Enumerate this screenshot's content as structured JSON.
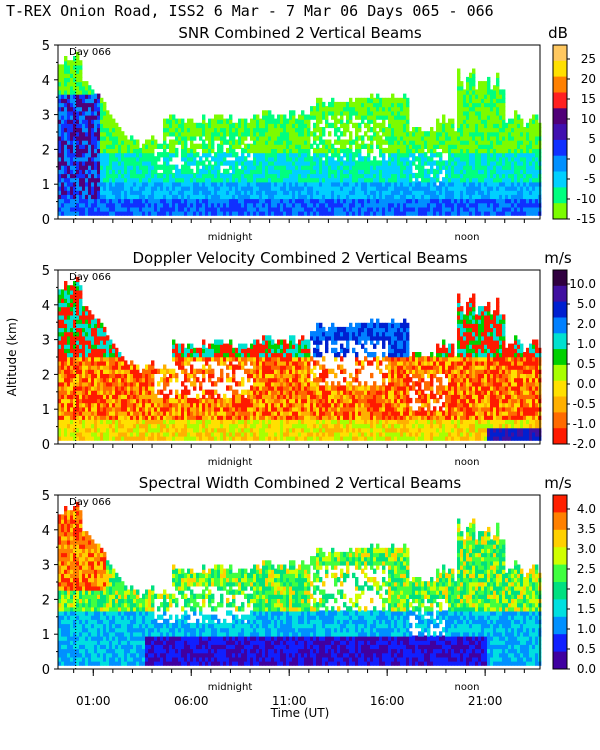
{
  "header": "T-REX Onion Road, ISS2   6 Mar -  7 Mar 06 Days 065 - 066",
  "colors": {
    "snr": [
      "#7CFC00",
      "#00FF7F",
      "#00D0FF",
      "#0090FF",
      "#1030FF",
      "#4010B0",
      "#500078",
      "#FF2020",
      "#FF8000",
      "#FFE000",
      "#FFC860"
    ],
    "vel": [
      "#FF1A00",
      "#FF6A00",
      "#FFB000",
      "#FFE000",
      "#A8FF00",
      "#00D000",
      "#00E0D0",
      "#0080FF",
      "#0020D0",
      "#4010A0",
      "#300040"
    ],
    "width": [
      "#4000A0",
      "#1020FF",
      "#0090FF",
      "#00E0E0",
      "#00E080",
      "#40FF40",
      "#D0FF00",
      "#FFD000",
      "#FF8000",
      "#FF2000"
    ]
  },
  "chart_data": [
    {
      "type": "heatmap",
      "title": "SNR Combined 2 Vertical Beams",
      "unit": "dB",
      "day_marker": "Day 066",
      "xlabel": "",
      "ylabel": "",
      "x_range_hours": [
        -0.8,
        23.8
      ],
      "ylim": [
        0,
        5
      ],
      "y_ticks": [
        "0",
        "1",
        "2",
        "3",
        "4",
        "5"
      ],
      "x_annotations": [
        "midnight",
        "noon"
      ],
      "colorbar_labels": [
        "25",
        "20",
        "15",
        "10",
        "5",
        "0",
        "-5",
        "-10",
        "-15"
      ],
      "colorbar_range": [
        -15,
        25
      ]
    },
    {
      "type": "heatmap",
      "title": "Doppler Velocity Combined 2 Vertical Beams",
      "unit": "m/s",
      "day_marker": "Day 066",
      "xlabel": "",
      "ylabel": "Altitude (km)",
      "x_range_hours": [
        -0.8,
        23.8
      ],
      "ylim": [
        0,
        5
      ],
      "y_ticks": [
        "0",
        "1",
        "2",
        "3",
        "4",
        "5"
      ],
      "x_annotations": [
        "midnight",
        "noon"
      ],
      "colorbar_labels": [
        "10.0",
        "5.0",
        "2.0",
        "1.0",
        "0.5",
        "0.0",
        "-0.5",
        "-1.0",
        "-2.0"
      ]
    },
    {
      "type": "heatmap",
      "title": "Spectral Width Combined 2 Vertical Beams",
      "unit": "m/s",
      "day_marker": "Day 066",
      "xlabel": "Time (UT)",
      "ylabel": "",
      "x_range_hours": [
        -0.8,
        23.8
      ],
      "ylim": [
        0,
        5
      ],
      "y_ticks": [
        "0",
        "1",
        "2",
        "3",
        "4",
        "5"
      ],
      "x_annotations": [
        "midnight",
        "noon"
      ],
      "x_tick_labels": [
        "01:00",
        "06:00",
        "11:00",
        "16:00",
        "21:00"
      ],
      "x_tick_hours": [
        1,
        6,
        11,
        16,
        21
      ],
      "colorbar_labels": [
        "4.0",
        "3.5",
        "3.0",
        "2.5",
        "2.0",
        "1.5",
        "1.0",
        "0.5",
        "0.0"
      ],
      "colorbar_range": [
        0,
        4
      ]
    }
  ]
}
